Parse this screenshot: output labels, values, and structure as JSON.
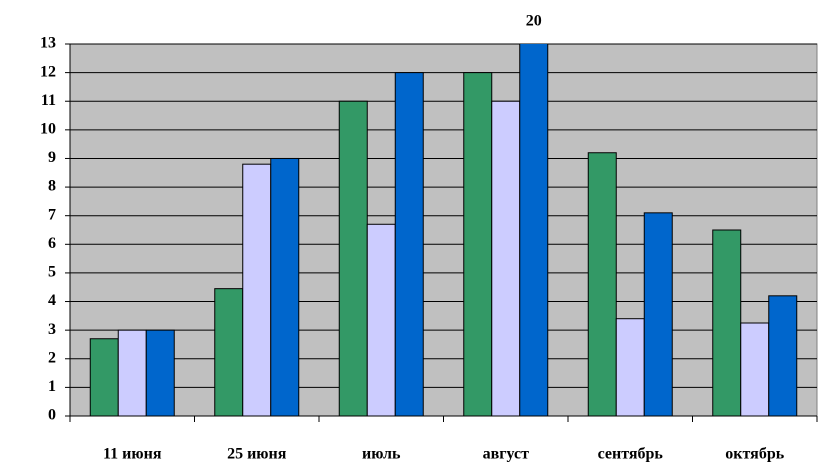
{
  "chart_data": {
    "type": "bar",
    "categories": [
      "11 июня",
      "25 июня",
      "июль",
      "август",
      "сентябрь",
      "октябрь"
    ],
    "series": [
      {
        "color": "#339966",
        "values": [
          2.7,
          4.45,
          11.0,
          12.0,
          9.2,
          6.5
        ]
      },
      {
        "color": "#ccccff",
        "values": [
          3.0,
          8.8,
          6.7,
          11.0,
          3.4,
          3.25
        ]
      },
      {
        "color": "#0066cc",
        "values": [
          3.0,
          9.0,
          12.0,
          20,
          7.1,
          4.2
        ],
        "value_labels": [
          null,
          null,
          null,
          "20",
          null,
          null
        ]
      }
    ],
    "ylim": [
      0,
      13
    ],
    "yticks": [
      0,
      1,
      2,
      3,
      4,
      5,
      6,
      7,
      8,
      9,
      10,
      11,
      12,
      13
    ],
    "grid": true,
    "plot_background": "#c0c0c0"
  }
}
